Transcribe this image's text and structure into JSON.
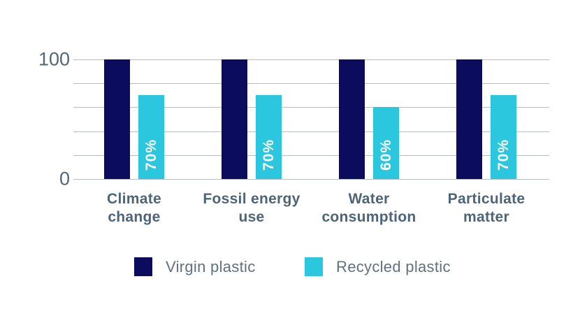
{
  "chart_data": {
    "type": "bar",
    "title": "",
    "xlabel": "",
    "ylabel": "",
    "categories": [
      "Climate change",
      "Fossil energy use",
      "Water consumption",
      "Particulate matter"
    ],
    "category_lines": [
      [
        "Climate",
        "change"
      ],
      [
        "Fossil energy",
        "use"
      ],
      [
        "Water",
        "consumption"
      ],
      [
        "Particulate",
        "matter"
      ]
    ],
    "series": [
      {
        "name": "Virgin plastic",
        "color": "#0c0c5e",
        "values": [
          100,
          100,
          100,
          100
        ],
        "value_labels": [
          "",
          "",
          "",
          ""
        ]
      },
      {
        "name": "Recycled plastic",
        "color": "#2bc7de",
        "values": [
          70,
          70,
          60,
          70
        ],
        "value_labels": [
          "70%",
          "70%",
          "60%",
          "70%"
        ]
      }
    ],
    "ylim": [
      0,
      100
    ],
    "gridline_values": [
      100,
      80,
      60,
      40,
      20,
      0
    ],
    "yticks": [
      {
        "label": "100",
        "value": 100
      },
      {
        "label": "0",
        "value": 0
      }
    ],
    "grid": true,
    "legend": {
      "position": "bottom",
      "entries": [
        {
          "label": "Virgin plastic",
          "color": "#0c0c5e"
        },
        {
          "label": "Recycled plastic",
          "color": "#2bc7de"
        }
      ]
    },
    "colors": {
      "background": "#ffffff",
      "gridline": "#b7bcc1",
      "ytick_text": "#53677a",
      "category_text": "#4e6477",
      "legend_text": "#5f7181",
      "bar_value_text": "#ffffff"
    }
  }
}
